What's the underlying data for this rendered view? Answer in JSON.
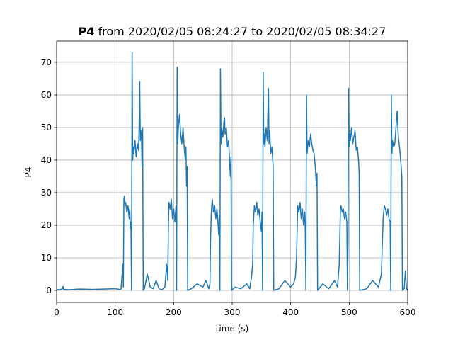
{
  "chart_data": {
    "type": "line",
    "title": {
      "bold": "P4",
      "text": "from 2020/02/05 08:24:27 to 2020/02/05 08:34:27"
    },
    "x_label": "time (s)",
    "y_label": "P4",
    "xlim": [
      0,
      600
    ],
    "xticks": [
      0,
      100,
      200,
      300,
      400,
      500,
      600
    ],
    "ylim": [
      -3.7,
      76.5
    ],
    "yticks": [
      0,
      10,
      20,
      30,
      40,
      50,
      60,
      70
    ],
    "grid": true,
    "series": [
      {
        "name": "P4",
        "color": "#1f77b4",
        "x": [
          0,
          5,
          10,
          11,
          12,
          20,
          40,
          60,
          80,
          100,
          108,
          110,
          112,
          113,
          114,
          115,
          116,
          117,
          118,
          120,
          122,
          124,
          125,
          126,
          127,
          128,
          129,
          130,
          131,
          132,
          134,
          136,
          138,
          140,
          141,
          142,
          143,
          144,
          145,
          146,
          147,
          148,
          150,
          155,
          160,
          165,
          170,
          175,
          180,
          185,
          188,
          190,
          191,
          192,
          194,
          196,
          198,
          200,
          202,
          204,
          205,
          206,
          207,
          208,
          210,
          212,
          214,
          216,
          218,
          220,
          221,
          222,
          223,
          224,
          230,
          240,
          250,
          255,
          260,
          262,
          263,
          264,
          265,
          266,
          268,
          270,
          272,
          274,
          276,
          277,
          278,
          279,
          280,
          281,
          282,
          284,
          286,
          287,
          288,
          290,
          292,
          294,
          296,
          297,
          298,
          299,
          305,
          315,
          325,
          330,
          333,
          335,
          336,
          338,
          340,
          342,
          344,
          346,
          348,
          350,
          351,
          352,
          353,
          354,
          355,
          356,
          358,
          360,
          362,
          363,
          364,
          366,
          368,
          370,
          371,
          380,
          390,
          400,
          405,
          408,
          410,
          412,
          414,
          416,
          418,
          420,
          422,
          424,
          425,
          426,
          427,
          428,
          430,
          432,
          434,
          436,
          438,
          440,
          442,
          444,
          445,
          446,
          455,
          465,
          475,
          480,
          483,
          485,
          486,
          488,
          490,
          492,
          494,
          496,
          497,
          498,
          499,
          500,
          501,
          502,
          504,
          506,
          508,
          510,
          512,
          514,
          516,
          517,
          518,
          530,
          540,
          550,
          555,
          558,
          560,
          562,
          564,
          566,
          568,
          570,
          571,
          572,
          573,
          574,
          576,
          578,
          580,
          582,
          584,
          586,
          588,
          590,
          591,
          594,
          596,
          598,
          600
        ],
        "values": [
          0.3,
          0.2,
          0.5,
          1.2,
          0.3,
          0.2,
          0.4,
          0.3,
          0.4,
          0.5,
          0.3,
          0.4,
          5,
          8,
          1,
          28,
          29,
          26,
          27,
          24,
          26,
          22,
          25,
          19,
          21,
          0,
          73,
          40,
          44,
          42,
          46,
          41,
          45,
          43,
          50,
          64,
          46,
          49,
          47,
          38,
          50,
          0,
          0.5,
          5,
          1,
          0.5,
          3,
          0.5,
          0.2,
          1,
          8,
          3,
          20,
          27,
          25,
          28,
          22,
          25,
          21,
          26,
          0,
          68.5,
          45,
          50,
          54,
          48,
          45,
          50,
          44,
          40,
          44,
          32,
          38,
          0,
          0.5,
          2,
          1,
          3,
          0.5,
          2,
          15,
          22,
          26,
          28,
          24,
          26,
          22,
          25,
          20,
          17,
          23,
          0,
          68,
          45,
          50,
          47,
          52,
          53,
          48,
          50,
          44,
          46,
          38,
          35,
          41,
          0,
          1,
          0.5,
          2,
          0.5,
          4,
          8,
          20,
          26,
          24,
          27,
          23,
          25,
          21,
          18,
          24,
          0,
          67,
          45,
          48,
          44,
          50,
          46,
          62,
          45,
          49,
          42,
          44,
          38,
          0,
          0.5,
          3,
          1,
          2,
          4,
          10,
          26,
          24,
          27,
          22,
          25,
          20,
          24,
          18,
          0,
          60,
          42,
          46,
          44,
          48,
          45,
          43,
          42,
          38,
          32,
          36,
          0,
          2,
          0.5,
          3,
          1,
          8,
          25,
          26,
          24,
          25,
          22,
          24,
          21,
          0,
          15,
          62,
          44,
          48,
          46,
          50,
          45,
          47,
          49,
          43,
          44,
          40,
          36,
          0,
          0.5,
          3,
          1,
          5,
          22,
          26,
          25,
          23,
          25,
          22,
          21,
          0,
          60,
          42,
          46,
          44,
          45,
          50,
          55,
          47,
          44,
          40,
          35,
          0,
          0.5,
          6,
          0.5,
          0
        ]
      }
    ]
  }
}
